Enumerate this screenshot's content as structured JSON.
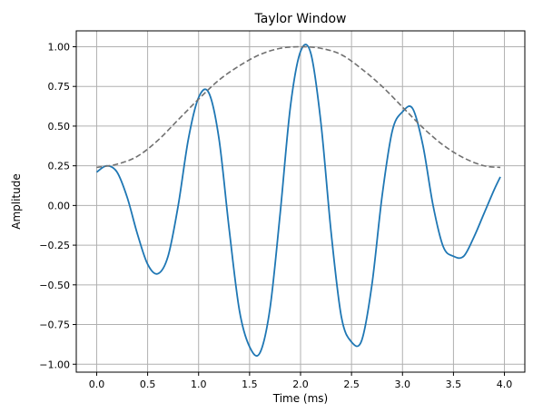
{
  "chart_data": {
    "type": "line",
    "title": "Taylor Window",
    "xlabel": "Time (ms)",
    "ylabel": "Amplitude",
    "xlim": [
      -0.2,
      4.2
    ],
    "ylim": [
      -1.05,
      1.1
    ],
    "xticks": [
      0.0,
      0.5,
      1.0,
      1.5,
      2.0,
      2.5,
      3.0,
      3.5,
      4.0
    ],
    "xtick_labels": [
      "0.0",
      "0.5",
      "1.0",
      "1.5",
      "2.0",
      "2.5",
      "3.0",
      "3.5",
      "4.0"
    ],
    "yticks": [
      -1.0,
      -0.75,
      -0.5,
      -0.25,
      0.0,
      0.25,
      0.5,
      0.75,
      1.0
    ],
    "ytick_labels": [
      "−1.00",
      "−0.75",
      "−0.50",
      "−0.25",
      "0.00",
      "0.25",
      "0.50",
      "0.75",
      "1.00"
    ],
    "grid": true,
    "series": [
      {
        "style": "solid",
        "color": "#1f77b4",
        "x": [
          0.0,
          0.1,
          0.2,
          0.3,
          0.4,
          0.5,
          0.6,
          0.7,
          0.8,
          0.9,
          1.0,
          1.1,
          1.2,
          1.3,
          1.4,
          1.5,
          1.6,
          1.7,
          1.8,
          1.9,
          2.0,
          2.1,
          2.2,
          2.3,
          2.4,
          2.5,
          2.6,
          2.7,
          2.8,
          2.9,
          3.0,
          3.1,
          3.2,
          3.3,
          3.4,
          3.5,
          3.6,
          3.7,
          3.8,
          3.9,
          3.96
        ],
        "y": [
          0.21,
          0.25,
          0.21,
          0.05,
          -0.18,
          -0.37,
          -0.43,
          -0.32,
          0.0,
          0.42,
          0.68,
          0.71,
          0.42,
          -0.15,
          -0.66,
          -0.89,
          -0.93,
          -0.65,
          -0.05,
          0.62,
          0.97,
          0.96,
          0.52,
          -0.17,
          -0.7,
          -0.86,
          -0.85,
          -0.5,
          0.06,
          0.47,
          0.59,
          0.61,
          0.38,
          0.0,
          -0.26,
          -0.32,
          -0.32,
          -0.2,
          -0.05,
          0.1,
          0.18
        ]
      },
      {
        "style": "dashed",
        "color": "#707070",
        "x": [
          0.0,
          0.2,
          0.4,
          0.6,
          0.8,
          1.0,
          1.2,
          1.4,
          1.6,
          1.8,
          2.0,
          2.2,
          2.4,
          2.6,
          2.8,
          3.0,
          3.2,
          3.4,
          3.6,
          3.8,
          3.96
        ],
        "y": [
          0.24,
          0.26,
          0.31,
          0.41,
          0.54,
          0.67,
          0.79,
          0.88,
          0.95,
          0.99,
          1.0,
          0.99,
          0.95,
          0.86,
          0.75,
          0.62,
          0.49,
          0.38,
          0.3,
          0.25,
          0.24
        ]
      }
    ]
  }
}
